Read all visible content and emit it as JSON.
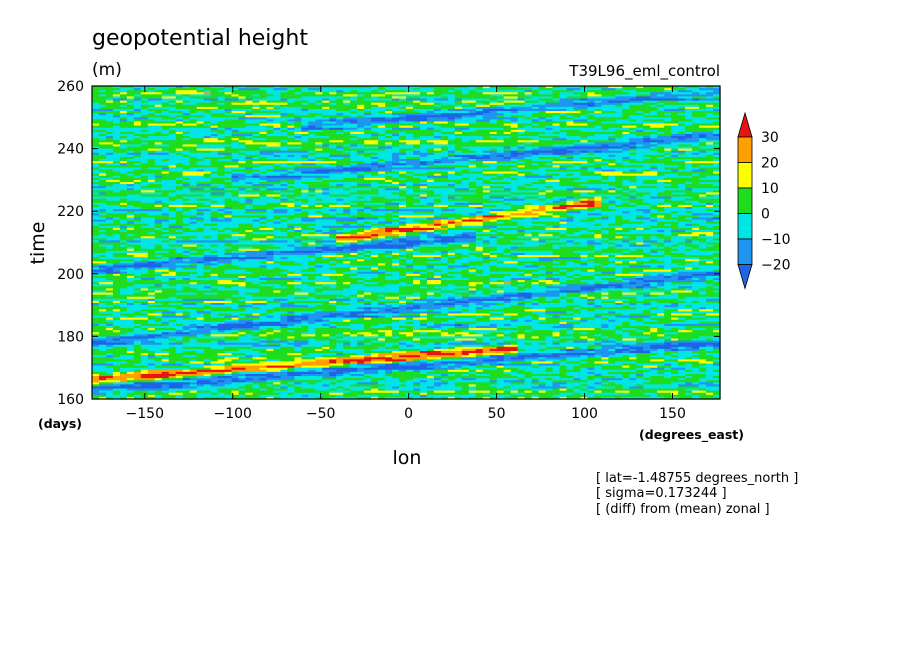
{
  "chart_data": {
    "type": "heatmap",
    "title": "geopotential height",
    "units": "(m)",
    "experiment": "T39L96_eml_control",
    "xlabel": "lon",
    "xunits": "(degrees_east)",
    "ylabel": "time",
    "yunits": "(days)",
    "xlim": [
      -180,
      177
    ],
    "ylim": [
      160,
      260
    ],
    "xticks": [
      -150,
      -100,
      -50,
      0,
      50,
      100,
      150
    ],
    "yticks": [
      160,
      180,
      200,
      220,
      240,
      260
    ],
    "colorbar": {
      "levels": [
        -20,
        -10,
        0,
        10,
        20,
        30
      ],
      "colors": [
        "#1e64e6",
        "#1e96f0",
        "#00e6e6",
        "#1edc1e",
        "#ffff00",
        "#ffa000",
        "#e61414"
      ],
      "extend": "both"
    },
    "annotations": [
      "[ lat=-1.48755 degrees_north ]",
      "[ sigma=0.173244 ]",
      "[ (diff) from (mean) zonal ]"
    ],
    "features": [
      {
        "band": "positive",
        "lon_start": -40,
        "lon_end": 110,
        "time_start": 211,
        "time_end": 223
      },
      {
        "band": "negative",
        "lon_start": -180,
        "lon_end": 40,
        "time_start": 201,
        "time_end": 212
      },
      {
        "band": "negative",
        "lon_start": -100,
        "lon_end": 177,
        "time_start": 230,
        "time_end": 244
      },
      {
        "band": "negative",
        "lon_start": -60,
        "lon_end": 177,
        "time_start": 247,
        "time_end": 258
      },
      {
        "band": "negative",
        "lon_start": -180,
        "lon_end": 177,
        "time_start": 178,
        "time_end": 200
      },
      {
        "band": "negative",
        "lon_start": -180,
        "lon_end": 177,
        "time_start": 163,
        "time_end": 178
      },
      {
        "band": "positive",
        "lon_start": -180,
        "lon_end": 60,
        "time_start": 166,
        "time_end": 176
      }
    ]
  }
}
